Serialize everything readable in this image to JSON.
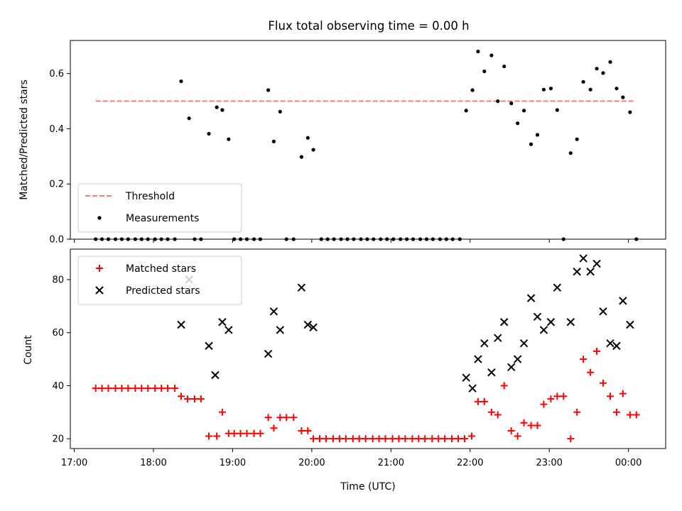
{
  "chart_data": {
    "title": "Flux total observing time = 0.00 h",
    "xlabel": "Time (UTC)",
    "x_unit": "hours UTC (values above 24 are after midnight)",
    "xlim": [
      16.95,
      24.47
    ],
    "x_ticks": [
      {
        "value": 17,
        "label": "17:00"
      },
      {
        "value": 18,
        "label": "18:00"
      },
      {
        "value": 19,
        "label": "19:00"
      },
      {
        "value": 20,
        "label": "20:00"
      },
      {
        "value": 21,
        "label": "21:00"
      },
      {
        "value": 22,
        "label": "22:00"
      },
      {
        "value": 23,
        "label": "23:00"
      },
      {
        "value": 24,
        "label": "00:00"
      }
    ],
    "panels": [
      {
        "type": "scatter",
        "ylabel": "Matched/Predicted stars",
        "ylim": [
          0,
          0.72
        ],
        "y_ticks": [
          {
            "value": 0.0,
            "label": "0.0"
          },
          {
            "value": 0.2,
            "label": "0.2"
          },
          {
            "value": 0.4,
            "label": "0.4"
          },
          {
            "value": 0.6,
            "label": "0.6"
          }
        ],
        "legend_position": "lower-left",
        "threshold": {
          "name": "Threshold",
          "value": 0.5,
          "x_range": [
            17.27,
            24.07
          ],
          "color": "#ff7777",
          "style": "dashed"
        },
        "series": [
          {
            "name": "Measurements",
            "marker": "dot",
            "color": "#000000",
            "points": [
              [
                17.27,
                0
              ],
              [
                17.35,
                0
              ],
              [
                17.43,
                0
              ],
              [
                17.52,
                0
              ],
              [
                17.6,
                0
              ],
              [
                17.68,
                0
              ],
              [
                17.77,
                0
              ],
              [
                17.85,
                0
              ],
              [
                17.93,
                0
              ],
              [
                18.02,
                0
              ],
              [
                18.1,
                0
              ],
              [
                18.18,
                0
              ],
              [
                18.27,
                0
              ],
              [
                18.35,
                0.572
              ],
              [
                18.45,
                0.438
              ],
              [
                18.52,
                0
              ],
              [
                18.6,
                0
              ],
              [
                18.7,
                0.382
              ],
              [
                18.8,
                0.478
              ],
              [
                18.87,
                0.468
              ],
              [
                18.95,
                0.362
              ],
              [
                19.02,
                0
              ],
              [
                19.1,
                0
              ],
              [
                19.18,
                0
              ],
              [
                19.27,
                0
              ],
              [
                19.35,
                0
              ],
              [
                19.45,
                0.54
              ],
              [
                19.52,
                0.354
              ],
              [
                19.6,
                0.462
              ],
              [
                19.68,
                0
              ],
              [
                19.77,
                0
              ],
              [
                19.87,
                0.298
              ],
              [
                19.95,
                0.367
              ],
              [
                20.02,
                0.324
              ],
              [
                20.12,
                0
              ],
              [
                20.2,
                0
              ],
              [
                20.28,
                0
              ],
              [
                20.37,
                0
              ],
              [
                20.45,
                0
              ],
              [
                20.53,
                0
              ],
              [
                20.62,
                0
              ],
              [
                20.7,
                0
              ],
              [
                20.78,
                0
              ],
              [
                20.87,
                0
              ],
              [
                20.95,
                0
              ],
              [
                21.03,
                0
              ],
              [
                21.12,
                0
              ],
              [
                21.2,
                0
              ],
              [
                21.28,
                0
              ],
              [
                21.37,
                0
              ],
              [
                21.45,
                0
              ],
              [
                21.53,
                0
              ],
              [
                21.62,
                0
              ],
              [
                21.7,
                0
              ],
              [
                21.78,
                0
              ],
              [
                21.87,
                0
              ],
              [
                21.95,
                0.466
              ],
              [
                22.03,
                0.54
              ],
              [
                22.1,
                0.68
              ],
              [
                22.18,
                0.608
              ],
              [
                22.27,
                0.666
              ],
              [
                22.35,
                0.5
              ],
              [
                22.43,
                0.626
              ],
              [
                22.52,
                0.492
              ],
              [
                22.6,
                0.42
              ],
              [
                22.68,
                0.466
              ],
              [
                22.77,
                0.344
              ],
              [
                22.85,
                0.378
              ],
              [
                22.93,
                0.542
              ],
              [
                23.02,
                0.546
              ],
              [
                23.1,
                0.468
              ],
              [
                23.18,
                0
              ],
              [
                23.27,
                0.312
              ],
              [
                23.35,
                0.362
              ],
              [
                23.43,
                0.57
              ],
              [
                23.52,
                0.542
              ],
              [
                23.6,
                0.618
              ],
              [
                23.68,
                0.602
              ],
              [
                23.77,
                0.642
              ],
              [
                23.85,
                0.546
              ],
              [
                23.93,
                0.514
              ],
              [
                24.02,
                0.46
              ],
              [
                24.1,
                0
              ]
            ]
          }
        ]
      },
      {
        "type": "scatter",
        "ylabel": "Count",
        "ylim": [
          16.3,
          91.5
        ],
        "y_ticks": [
          {
            "value": 20,
            "label": "20"
          },
          {
            "value": 40,
            "label": "40"
          },
          {
            "value": 60,
            "label": "60"
          },
          {
            "value": 80,
            "label": "80"
          }
        ],
        "legend_position": "upper-left",
        "series": [
          {
            "name": "Matched stars",
            "marker": "plus",
            "color": "#ff0000",
            "points": [
              [
                17.27,
                39
              ],
              [
                17.35,
                39
              ],
              [
                17.43,
                39
              ],
              [
                17.52,
                39
              ],
              [
                17.6,
                39
              ],
              [
                17.68,
                39
              ],
              [
                17.77,
                39
              ],
              [
                17.85,
                39
              ],
              [
                17.93,
                39
              ],
              [
                18.02,
                39
              ],
              [
                18.1,
                39
              ],
              [
                18.18,
                39
              ],
              [
                18.27,
                39
              ],
              [
                18.35,
                36
              ],
              [
                18.43,
                35
              ],
              [
                18.52,
                35
              ],
              [
                18.6,
                35
              ],
              [
                18.7,
                21
              ],
              [
                18.8,
                21
              ],
              [
                18.87,
                30
              ],
              [
                18.95,
                22
              ],
              [
                19.02,
                22
              ],
              [
                19.1,
                22
              ],
              [
                19.18,
                22
              ],
              [
                19.27,
                22
              ],
              [
                19.35,
                22
              ],
              [
                19.45,
                28
              ],
              [
                19.52,
                24
              ],
              [
                19.6,
                28
              ],
              [
                19.68,
                28
              ],
              [
                19.77,
                28
              ],
              [
                19.87,
                23
              ],
              [
                19.95,
                23
              ],
              [
                20.02,
                20
              ],
              [
                20.1,
                20
              ],
              [
                20.18,
                20
              ],
              [
                20.27,
                20
              ],
              [
                20.35,
                20
              ],
              [
                20.43,
                20
              ],
              [
                20.52,
                20
              ],
              [
                20.6,
                20
              ],
              [
                20.68,
                20
              ],
              [
                20.77,
                20
              ],
              [
                20.85,
                20
              ],
              [
                20.93,
                20
              ],
              [
                21.02,
                20
              ],
              [
                21.1,
                20
              ],
              [
                21.18,
                20
              ],
              [
                21.27,
                20
              ],
              [
                21.35,
                20
              ],
              [
                21.43,
                20
              ],
              [
                21.52,
                20
              ],
              [
                21.6,
                20
              ],
              [
                21.68,
                20
              ],
              [
                21.77,
                20
              ],
              [
                21.85,
                20
              ],
              [
                21.93,
                20
              ],
              [
                22.02,
                21
              ],
              [
                22.1,
                34
              ],
              [
                22.18,
                34
              ],
              [
                22.27,
                30
              ],
              [
                22.35,
                29
              ],
              [
                22.43,
                40
              ],
              [
                22.52,
                23
              ],
              [
                22.6,
                21
              ],
              [
                22.68,
                26
              ],
              [
                22.77,
                25
              ],
              [
                22.85,
                25
              ],
              [
                22.93,
                33
              ],
              [
                23.02,
                35
              ],
              [
                23.1,
                36
              ],
              [
                23.18,
                36
              ],
              [
                23.27,
                20
              ],
              [
                23.35,
                30
              ],
              [
                23.43,
                50
              ],
              [
                23.52,
                45
              ],
              [
                23.6,
                53
              ],
              [
                23.68,
                41
              ],
              [
                23.77,
                36
              ],
              [
                23.85,
                30
              ],
              [
                23.93,
                37
              ],
              [
                24.02,
                29
              ],
              [
                24.1,
                29
              ]
            ]
          },
          {
            "name": "Predicted stars",
            "marker": "x",
            "color": "#000000",
            "points": [
              [
                18.35,
                63
              ],
              [
                18.45,
                80
              ],
              [
                18.7,
                55
              ],
              [
                18.78,
                44
              ],
              [
                18.87,
                64
              ],
              [
                18.95,
                61
              ],
              [
                19.45,
                52
              ],
              [
                19.52,
                68
              ],
              [
                19.6,
                61
              ],
              [
                19.87,
                77
              ],
              [
                19.95,
                63
              ],
              [
                20.02,
                62
              ],
              [
                21.95,
                43
              ],
              [
                22.03,
                39
              ],
              [
                22.1,
                50
              ],
              [
                22.18,
                56
              ],
              [
                22.27,
                45
              ],
              [
                22.35,
                58
              ],
              [
                22.43,
                64
              ],
              [
                22.52,
                47
              ],
              [
                22.6,
                50
              ],
              [
                22.68,
                56
              ],
              [
                22.77,
                73
              ],
              [
                22.85,
                66
              ],
              [
                22.93,
                61
              ],
              [
                23.02,
                64
              ],
              [
                23.1,
                77
              ],
              [
                23.27,
                64
              ],
              [
                23.35,
                83
              ],
              [
                23.43,
                88
              ],
              [
                23.52,
                83
              ],
              [
                23.6,
                86
              ],
              [
                23.68,
                68
              ],
              [
                23.77,
                56
              ],
              [
                23.85,
                55
              ],
              [
                23.93,
                72
              ],
              [
                24.02,
                63
              ]
            ]
          }
        ]
      }
    ]
  }
}
